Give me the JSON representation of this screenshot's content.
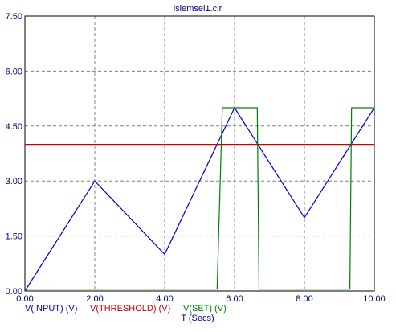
{
  "chart_data": {
    "type": "line",
    "title": "islemsel1.cir",
    "xlabel": "T (Secs)",
    "ylabel": "",
    "xlim": [
      0,
      10
    ],
    "ylim": [
      0,
      7.5
    ],
    "xticks": [
      "0.00",
      "2.00",
      "4.00",
      "6.00",
      "8.00",
      "10.00"
    ],
    "yticks": [
      "0.00",
      "1.50",
      "3.00",
      "4.50",
      "6.00",
      "7.50"
    ],
    "grid": true,
    "legend_position": "bottom-left",
    "series": [
      {
        "name": "V(INPUT) (V)",
        "color": "#0000cc",
        "x": [
          0,
          2,
          4,
          6,
          8,
          10
        ],
        "y": [
          0,
          3,
          1,
          5,
          2,
          5
        ]
      },
      {
        "name": "V(THRESHOLD) (V)",
        "color": "#cc0000",
        "x": [
          0,
          10
        ],
        "y": [
          4,
          4
        ]
      },
      {
        "name": "V(SET) (V)",
        "color": "#008000",
        "x": [
          0,
          5.5,
          5.65,
          6.65,
          6.7,
          9.3,
          9.35,
          10
        ],
        "y": [
          0.05,
          0.05,
          5,
          5,
          0.05,
          0.05,
          5,
          5
        ]
      }
    ]
  }
}
